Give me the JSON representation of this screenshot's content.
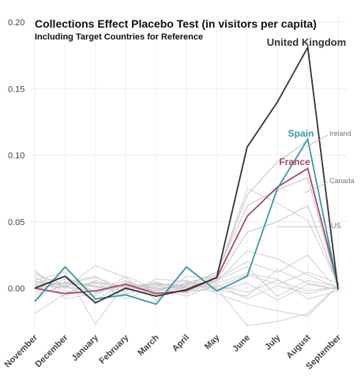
{
  "chart_data": {
    "type": "line",
    "title": "Collections Effect Placebo Test (in visitors per capita)",
    "subtitle": "Including Target Countries for Reference",
    "xlabel": "",
    "ylabel": "",
    "categories": [
      "November",
      "December",
      "January",
      "February",
      "March",
      "April",
      "May",
      "June",
      "July",
      "August",
      "September"
    ],
    "y_ticks": [
      "0.00",
      "0.05",
      "0.10",
      "0.15",
      "0.20"
    ],
    "ylim": [
      -0.03,
      0.2
    ],
    "grid": true,
    "highlighted_series": [
      {
        "name": "United Kingdom",
        "color": "#333333",
        "values": [
          0.0,
          0.009,
          -0.011,
          0.0,
          -0.006,
          -0.001,
          0.008,
          0.106,
          0.14,
          0.181,
          -0.001
        ]
      },
      {
        "name": "Spain",
        "color": "#3b97a6",
        "values": [
          -0.01,
          0.016,
          -0.008,
          -0.005,
          -0.012,
          0.016,
          -0.002,
          0.009,
          0.075,
          0.112,
          0.0
        ]
      },
      {
        "name": "France",
        "color": "#a8476e",
        "values": [
          0.0,
          -0.004,
          -0.002,
          0.003,
          -0.004,
          -0.002,
          0.008,
          0.054,
          0.076,
          0.09,
          0.002
        ]
      }
    ],
    "annotated_series": [
      {
        "name": "Ireland",
        "values": [
          0.003,
          0.004,
          0.001,
          0.002,
          -0.002,
          0.004,
          0.01,
          0.07,
          0.095,
          0.111,
          0.001
        ]
      },
      {
        "name": "Canada",
        "values": [
          0.005,
          0.002,
          0.004,
          0.001,
          0.003,
          0.002,
          0.012,
          0.062,
          0.074,
          0.083,
          0.0
        ]
      },
      {
        "name": "US",
        "values": [
          0.002,
          0.001,
          -0.002,
          0.003,
          0.0,
          0.001,
          0.006,
          0.042,
          0.05,
          0.062,
          0.002
        ]
      }
    ],
    "placebo_series": [
      {
        "values": [
          0.01,
          0.003,
          0.008,
          0.0,
          0.005,
          -0.003,
          0.001,
          0.01,
          0.003,
          0.012,
          0.004
        ]
      },
      {
        "values": [
          -0.019,
          -0.004,
          0.005,
          -0.008,
          0.001,
          0.006,
          -0.004,
          -0.012,
          -0.017,
          -0.021,
          0.002
        ]
      },
      {
        "values": [
          0.006,
          0.012,
          -0.027,
          0.004,
          0.0,
          -0.006,
          0.003,
          -0.008,
          0.002,
          -0.004,
          0.001
        ]
      },
      {
        "values": [
          0.012,
          0.0,
          0.017,
          0.008,
          -0.009,
          0.009,
          0.007,
          0.02,
          0.012,
          0.025,
          -0.002
        ]
      },
      {
        "values": [
          -0.003,
          0.007,
          0.001,
          -0.002,
          0.004,
          0.0,
          0.002,
          -0.003,
          0.006,
          -0.002,
          0.001
        ]
      },
      {
        "values": [
          0.014,
          -0.008,
          -0.004,
          0.006,
          -0.003,
          0.003,
          0.005,
          0.028,
          0.022,
          0.01,
          0.0
        ]
      },
      {
        "values": [
          0.0,
          0.004,
          0.009,
          -0.004,
          0.002,
          -0.001,
          -0.002,
          0.004,
          -0.009,
          0.003,
          -0.001
        ]
      },
      {
        "values": [
          0.008,
          -0.002,
          -0.006,
          0.009,
          -0.001,
          0.002,
          0.009,
          0.075,
          0.064,
          0.051,
          0.003
        ]
      },
      {
        "values": [
          -0.009,
          0.005,
          0.002,
          -0.005,
          0.007,
          0.005,
          0.0,
          -0.028,
          -0.025,
          -0.019,
          0.002
        ]
      },
      {
        "values": [
          0.004,
          0.009,
          -0.003,
          0.002,
          -0.005,
          0.001,
          0.004,
          0.011,
          0.007,
          -0.008,
          -0.002
        ]
      },
      {
        "values": [
          0.002,
          -0.006,
          0.006,
          -0.001,
          0.003,
          -0.004,
          0.006,
          0.016,
          -0.006,
          0.006,
          0.001
        ]
      },
      {
        "values": [
          -0.005,
          0.002,
          -0.009,
          0.005,
          -0.002,
          0.004,
          -0.001,
          -0.006,
          0.014,
          0.004,
          -0.001
        ]
      }
    ]
  }
}
